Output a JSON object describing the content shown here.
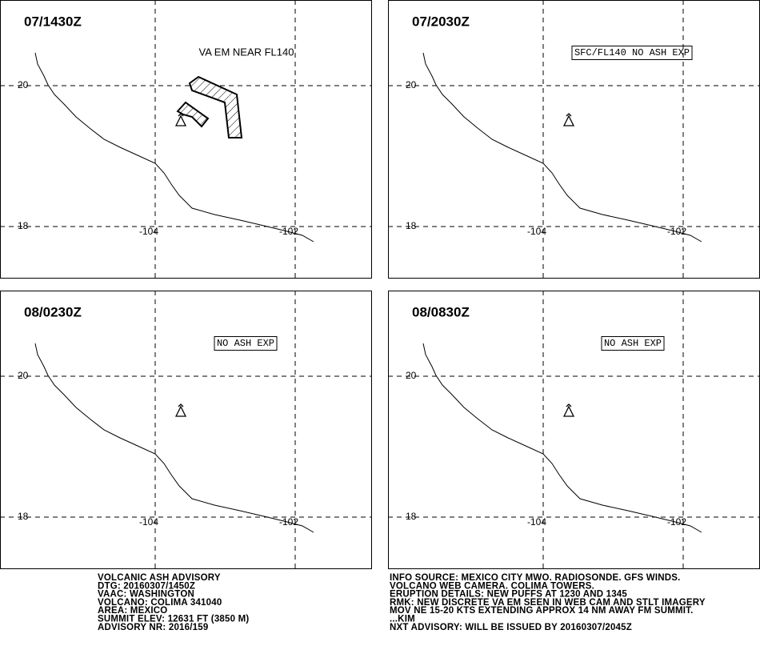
{
  "panels": [
    {
      "time": "07/1430Z",
      "annotation": "VA EM NEAR FL140",
      "annotation_style": "plain",
      "ash": true
    },
    {
      "time": "07/2030Z",
      "annotation": "SFC/FL140 NO ASH EXP",
      "annotation_style": "boxed",
      "ash": false
    },
    {
      "time": "08/0230Z",
      "annotation": "NO ASH EXP",
      "annotation_style": "boxed",
      "ash": false
    },
    {
      "time": "08/0830Z",
      "annotation": "NO ASH EXP",
      "annotation_style": "boxed",
      "ash": false
    }
  ],
  "grid": {
    "lats": [
      20,
      18
    ],
    "lons": [
      -104,
      -102
    ]
  },
  "advisory": {
    "left": [
      "VOLCANIC ASH ADVISORY",
      "DTG: 20160307/1450Z",
      "VAAC: WASHINGTON",
      "VOLCANO: COLIMA 341040",
      "AREA: MEXICO",
      "SUMMIT ELEV: 12631 FT (3850 M)",
      "ADVISORY NR: 2016/159"
    ],
    "right": [
      "INFO SOURCE: MEXICO CITY MWO. RADIOSONDE. GFS WINDS.",
      "VOLCANO WEB CAMERA. COLIMA TOWERS.",
      "ERUPTION DETAILS: NEW PUFFS AT 1230 AND 1345",
      "RMK: NEW DISCRETE VA EM SEEN IN WEB CAM AND STLT IMAGERY",
      "MOV NE 15-20 KTS EXTENDING APPROX 14 NM AWAY FM SUMMIT.",
      "...KIM",
      "NXT ADVISORY: WILL BE ISSUED BY 20160307/2045Z"
    ]
  }
}
